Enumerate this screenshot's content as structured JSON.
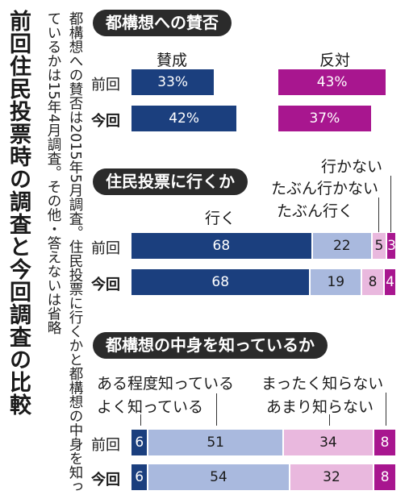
{
  "title": "前回住民投票時の調査と今回調査の比較",
  "note": "都構想への賛否は2015年5月調査。住民投票に行くかと都構想の中身を知っているかは15年4月調査。その他・答えないは省略",
  "row_labels": [
    "前回",
    "今回"
  ],
  "colors": {
    "navy": "#1b3f7e",
    "light_blue": "#a9b9de",
    "light_pink": "#e9b8de",
    "magenta": "#a8168f",
    "pill_bg": "#2b2b2b"
  },
  "chart_data": [
    {
      "type": "bar",
      "title": "都構想への賛否",
      "categories": [
        "前回",
        "今回"
      ],
      "series": [
        {
          "name": "賛成",
          "values": [
            33,
            42
          ],
          "labels": [
            "33%",
            "42%"
          ]
        },
        {
          "name": "反対",
          "values": [
            43,
            37
          ],
          "labels": [
            "43%",
            "37%"
          ]
        }
      ],
      "unit": "%"
    },
    {
      "type": "bar",
      "stacked": true,
      "title": "住民投票に行くか",
      "categories": [
        "前回",
        "今回"
      ],
      "series": [
        {
          "name": "行く",
          "values": [
            68,
            68
          ]
        },
        {
          "name": "たぶん行く",
          "values": [
            22,
            19
          ]
        },
        {
          "name": "たぶん行かない",
          "values": [
            5,
            8
          ]
        },
        {
          "name": "行かない",
          "values": [
            3,
            4
          ]
        }
      ]
    },
    {
      "type": "bar",
      "stacked": true,
      "title": "都構想の中身を知っているか",
      "categories": [
        "前回",
        "今回"
      ],
      "series": [
        {
          "name": "よく知っている",
          "values": [
            6,
            6
          ]
        },
        {
          "name": "ある程度知っている",
          "values": [
            51,
            54
          ]
        },
        {
          "name": "あまり知らない",
          "values": [
            34,
            32
          ]
        },
        {
          "name": "まったく知らない",
          "values": [
            8,
            8
          ]
        }
      ]
    }
  ]
}
